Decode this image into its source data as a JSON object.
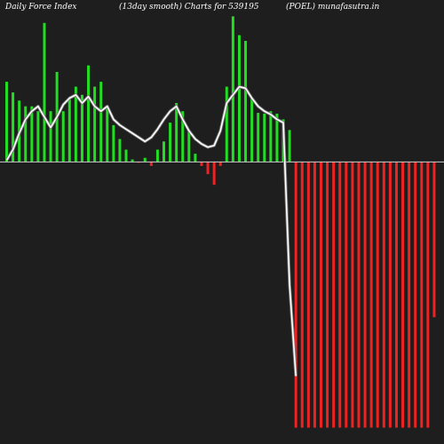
{
  "header": {
    "left": "Daily Force  Index",
    "center": "(13day smooth) Charts for 539195",
    "right": "(POEL) munafasutra.in"
  },
  "colors": {
    "background": "#1e1e1e",
    "positive": "#22dd22",
    "negative": "#ee2222",
    "line": "#ffffff",
    "zero_line": "#cccccc"
  },
  "chart_data": {
    "type": "bar",
    "bar_values": [
      98,
      85,
      75,
      68,
      68,
      62,
      170,
      62,
      110,
      62,
      78,
      92,
      82,
      118,
      92,
      98,
      65,
      45,
      28,
      15,
      3,
      -1,
      5,
      -5,
      15,
      25,
      48,
      72,
      62,
      38,
      10,
      -5,
      -15,
      -28,
      -5,
      92,
      178,
      155,
      148,
      77,
      60,
      59,
      62,
      59,
      52,
      39,
      -325,
      -325,
      -325,
      -325,
      -325,
      -325,
      -325,
      -325,
      -325,
      -325,
      -325,
      -325,
      -325,
      -325,
      -325,
      -325,
      -325,
      -325,
      -325,
      -325,
      -325,
      -325,
      -190
    ],
    "line_values": [
      2,
      15,
      35,
      52,
      62,
      68,
      55,
      42,
      55,
      70,
      78,
      82,
      72,
      80,
      68,
      62,
      68,
      52,
      45,
      40,
      35,
      30,
      25,
      30,
      40,
      52,
      62,
      68,
      52,
      38,
      28,
      22,
      18,
      20,
      38,
      72,
      82,
      92,
      90,
      78,
      68,
      62,
      58,
      52,
      48,
      -150,
      -262
    ],
    "ylim": [
      -345,
      198
    ]
  }
}
